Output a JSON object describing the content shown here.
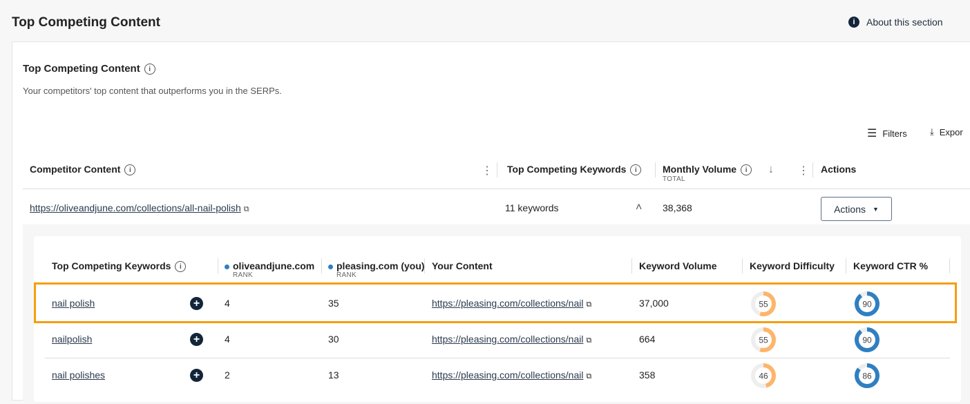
{
  "page": {
    "title": "Top Competing Content",
    "about": "About this section"
  },
  "section": {
    "title": "Top Competing Content",
    "subtitle": "Your competitors' top content that outperforms you in the SERPs.",
    "filters": "Filters",
    "export": "Expor"
  },
  "table": {
    "headers": {
      "content": "Competitor Content",
      "keywords": "Top Competing Keywords",
      "volume": "Monthly Volume",
      "volume_sub": "TOTAL",
      "actions": "Actions"
    },
    "row": {
      "url": "https://oliveandjune.com/collections/all-nail-polish",
      "keywords": "11 keywords",
      "volume": "38,368",
      "actions": "Actions"
    }
  },
  "sub_table": {
    "headers": {
      "keyword": "Top Competing Keywords",
      "comp": "oliveandjune.com",
      "you": "pleasing.com (you)",
      "rank": "RANK",
      "content": "Your Content",
      "kv": "Keyword Volume",
      "kd": "Keyword Difficulty",
      "ctr": "Keyword CTR %"
    },
    "colors": {
      "difficulty": "#fdb56b",
      "ctr": "#2f7fc1",
      "highlight": "#f59e0b"
    },
    "rows": [
      {
        "keyword": "nail polish",
        "comp_rank": "4",
        "you_rank": "35",
        "content": "https://pleasing.com/collections/nail",
        "volume": "37,000",
        "difficulty": 55,
        "ctr": 90,
        "highlighted": true
      },
      {
        "keyword": "nailpolish",
        "comp_rank": "4",
        "you_rank": "30",
        "content": "https://pleasing.com/collections/nail",
        "volume": "664",
        "difficulty": 55,
        "ctr": 90
      },
      {
        "keyword": "nail polishes",
        "comp_rank": "2",
        "you_rank": "13",
        "content": "https://pleasing.com/collections/nail",
        "volume": "358",
        "difficulty": 46,
        "ctr": 86
      }
    ]
  }
}
